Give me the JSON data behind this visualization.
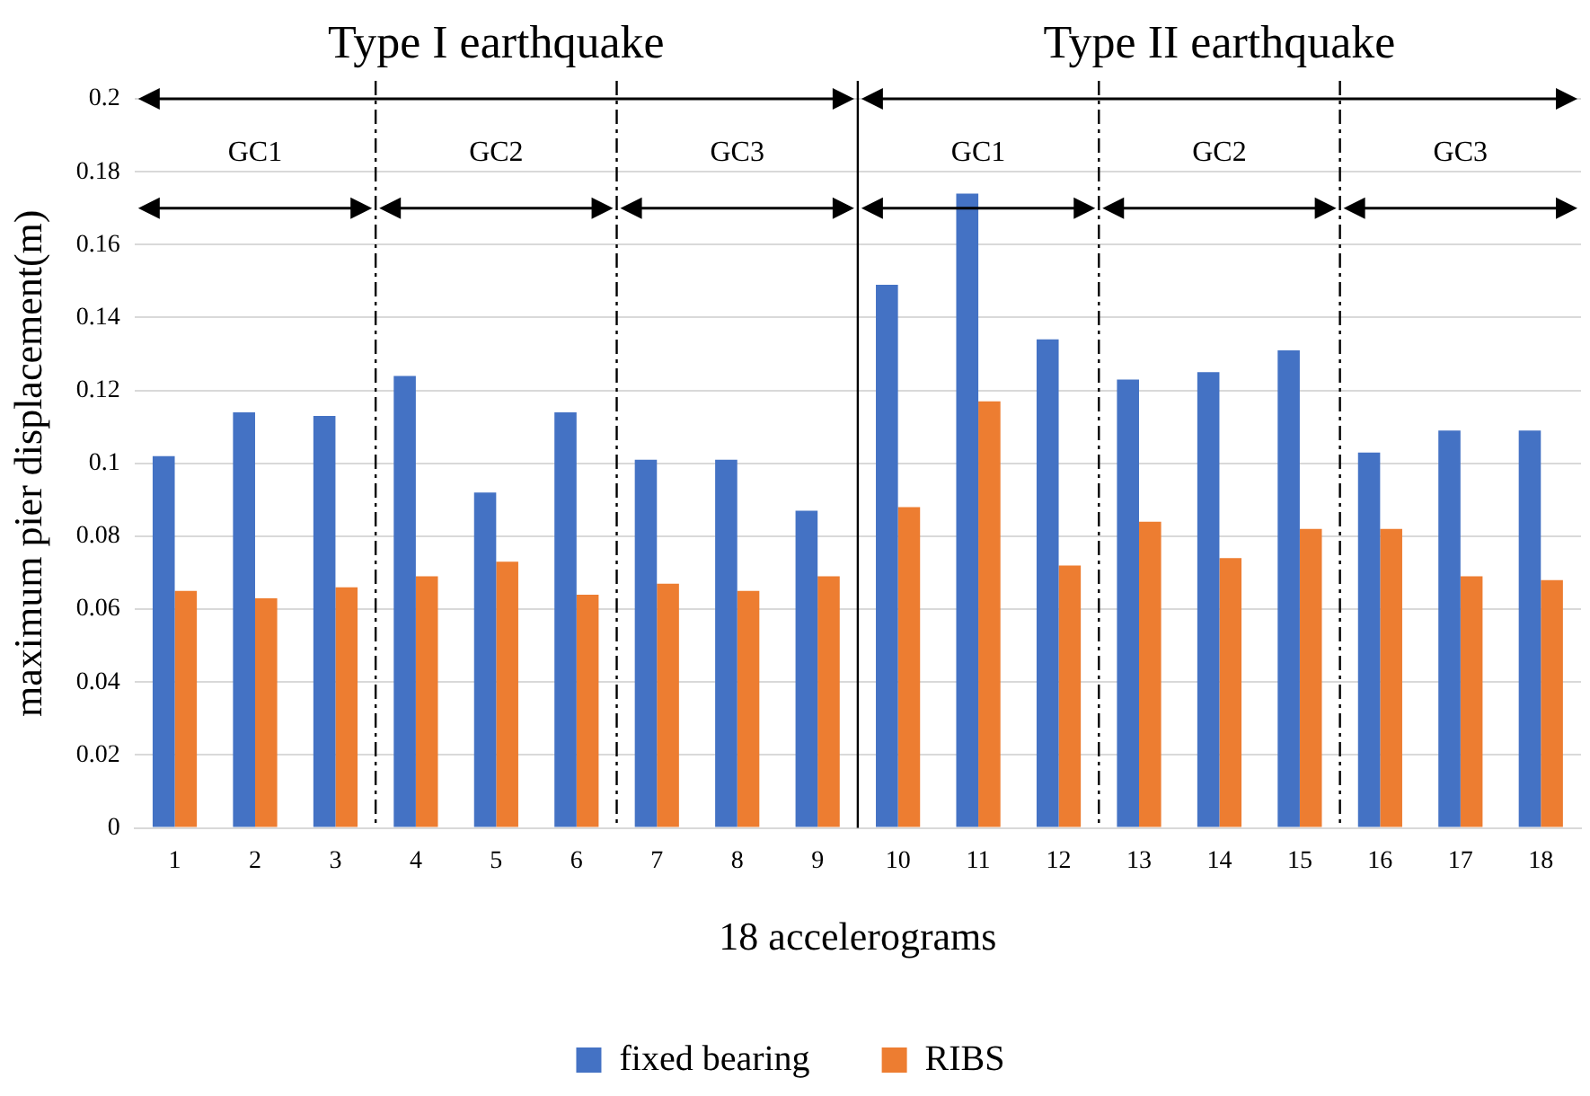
{
  "chart_data": {
    "type": "bar",
    "xlabel": "18 accelerograms",
    "ylabel": "maximum pier displacement(m)",
    "x": [
      1,
      2,
      3,
      4,
      5,
      6,
      7,
      8,
      9,
      10,
      11,
      12,
      13,
      14,
      15,
      16,
      17,
      18
    ],
    "xlim": [
      0.5,
      18.5
    ],
    "xticks": [
      1,
      2,
      3,
      4,
      5,
      6,
      7,
      8,
      9,
      10,
      11,
      12,
      13,
      14,
      15,
      16,
      17,
      18
    ],
    "series": [
      {
        "name": "fixed bearing",
        "color": "#4472c4",
        "values": [
          0.102,
          0.114,
          0.113,
          0.124,
          0.092,
          0.114,
          0.101,
          0.101,
          0.087,
          0.149,
          0.174,
          0.134,
          0.123,
          0.125,
          0.131,
          0.103,
          0.109,
          0.109
        ]
      },
      {
        "name": "RIBS",
        "color": "#ed7d31",
        "values": [
          0.065,
          0.063,
          0.066,
          0.069,
          0.073,
          0.064,
          0.067,
          0.065,
          0.069,
          0.088,
          0.117,
          0.072,
          0.084,
          0.074,
          0.082,
          0.082,
          0.069,
          0.068
        ]
      }
    ],
    "ylim": [
      0,
      0.2
    ],
    "yticks": [
      0,
      0.02,
      0.04,
      0.06,
      0.08,
      0.1,
      0.12,
      0.14,
      0.16,
      0.18,
      0.2
    ],
    "ref_lines": [
      {
        "axis": "x",
        "value": 3.5,
        "color": "#000000",
        "line_style": "dashed"
      },
      {
        "axis": "x",
        "value": 6.5,
        "color": "#000000",
        "line_style": "dashed"
      },
      {
        "axis": "x",
        "value": 9.5,
        "color": "#000000",
        "line_style": "solid"
      },
      {
        "axis": "x",
        "value": 12.5,
        "color": "#000000",
        "line_style": "dashed"
      },
      {
        "axis": "x",
        "value": 15.5,
        "color": "#000000",
        "line_style": "dashed"
      }
    ],
    "grid": "y",
    "legend": "bottom",
    "annotations": [
      "Type I earthquake",
      "Type II earthquake",
      "GC1",
      "GC2",
      "GC3",
      "GC1",
      "GC2",
      "GC3"
    ]
  }
}
